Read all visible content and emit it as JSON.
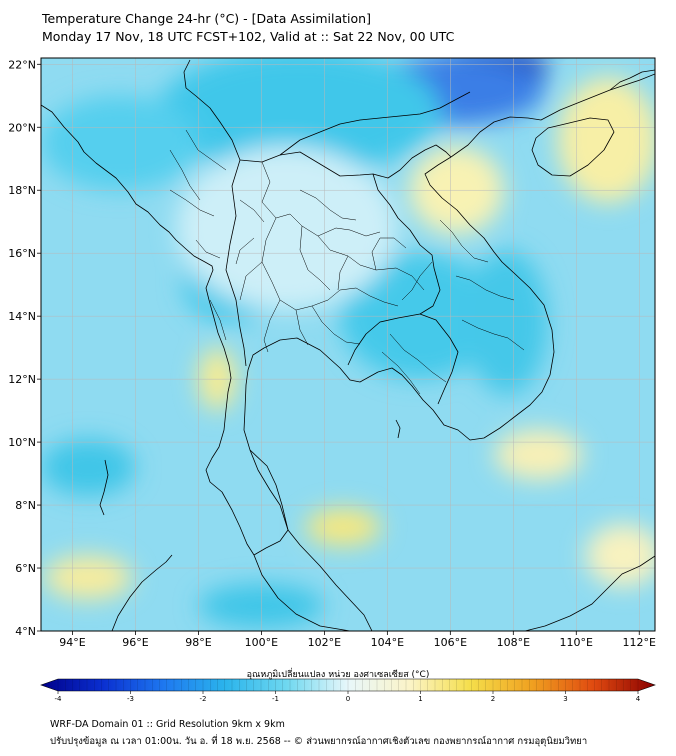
{
  "header": {
    "title_line1": "Temperature Change 24-hr (°C) - [Data Assimilation]",
    "title_line2": "Monday 17 Nov, 18 UTC FCST+102, Valid at :: Sat 22 Nov, 00 UTC"
  },
  "map": {
    "lon_range": [
      93,
      112.5
    ],
    "lat_range": [
      4,
      22.2
    ],
    "lat_ticks": [
      {
        "value": 22,
        "label": "22°N"
      },
      {
        "value": 20,
        "label": "20°N"
      },
      {
        "value": 18,
        "label": "18°N"
      },
      {
        "value": 16,
        "label": "16°N"
      },
      {
        "value": 14,
        "label": "14°N"
      },
      {
        "value": 12,
        "label": "12°N"
      },
      {
        "value": 10,
        "label": "10°N"
      },
      {
        "value": 8,
        "label": "8°N"
      },
      {
        "value": 6,
        "label": "6°N"
      },
      {
        "value": 4,
        "label": "4°N"
      }
    ],
    "lon_ticks": [
      {
        "value": 94,
        "label": "94°E"
      },
      {
        "value": 96,
        "label": "96°E"
      },
      {
        "value": 98,
        "label": "98°E"
      },
      {
        "value": 100,
        "label": "100°E"
      },
      {
        "value": 102,
        "label": "102°E"
      },
      {
        "value": 104,
        "label": "104°E"
      },
      {
        "value": 106,
        "label": "106°E"
      },
      {
        "value": 108,
        "label": "108°E"
      },
      {
        "value": 110,
        "label": "110°E"
      },
      {
        "value": 112,
        "label": "112°E"
      }
    ],
    "gridlines": true,
    "background_color": "#8fdbf1",
    "field_blobs": [
      {
        "lon": 107.2,
        "lat": 21.9,
        "rx": 1.9,
        "ry": 0.6,
        "color": "#0a1fb0"
      },
      {
        "lon": 106.2,
        "lat": 21.2,
        "rx": 2.8,
        "ry": 1.1,
        "color": "#3a7ee6"
      },
      {
        "lon": 101.2,
        "lat": 20.5,
        "rx": 4.5,
        "ry": 2.0,
        "color": "#3fc7ea"
      },
      {
        "lon": 95.5,
        "lat": 19.5,
        "rx": 2.5,
        "ry": 1.5,
        "color": "#55cfee"
      },
      {
        "lon": 105.0,
        "lat": 14.0,
        "rx": 2.5,
        "ry": 2.0,
        "color": "#45c9ea"
      },
      {
        "lon": 99.0,
        "lat": 15.0,
        "rx": 1.5,
        "ry": 1.2,
        "color": "#45c9ea"
      },
      {
        "lon": 100.8,
        "lat": 16.8,
        "rx": 3.5,
        "ry": 2.6,
        "color": "#cdeff8"
      },
      {
        "lon": 111.0,
        "lat": 19.6,
        "rx": 1.6,
        "ry": 2.0,
        "color": "#f7efa6"
      },
      {
        "lon": 106.2,
        "lat": 18.0,
        "rx": 1.5,
        "ry": 1.4,
        "color": "#f8f2b3"
      },
      {
        "lon": 98.6,
        "lat": 12.0,
        "rx": 0.6,
        "ry": 1.0,
        "color": "#f7ec93"
      },
      {
        "lon": 102.6,
        "lat": 7.3,
        "rx": 1.2,
        "ry": 0.6,
        "color": "#f6e880"
      },
      {
        "lon": 94.5,
        "lat": 5.7,
        "rx": 1.4,
        "ry": 0.7,
        "color": "#f7ec9e"
      },
      {
        "lon": 108.8,
        "lat": 9.6,
        "rx": 1.4,
        "ry": 0.8,
        "color": "#f8f0b6"
      },
      {
        "lon": 111.5,
        "lat": 6.4,
        "rx": 1.2,
        "ry": 1.0,
        "color": "#f8f2bf"
      },
      {
        "lon": 94.5,
        "lat": 9.2,
        "rx": 1.5,
        "ry": 0.9,
        "color": "#3fc6e8"
      },
      {
        "lon": 100.0,
        "lat": 4.8,
        "rx": 2.0,
        "ry": 0.7,
        "color": "#3fc6e8"
      },
      {
        "lon": 107.8,
        "lat": 13.8,
        "rx": 1.3,
        "ry": 2.3,
        "color": "#44c8e9"
      }
    ],
    "boundaries_color": "#000000"
  },
  "colorbar": {
    "label": "อุณหภูมิเปลี่ยนแปลง หน่วย องศาเซลเซียส (°C)",
    "min": -4,
    "max": 4,
    "ticks": [
      {
        "value": -4,
        "label": "-4"
      },
      {
        "value": -3,
        "label": "-3"
      },
      {
        "value": -2,
        "label": "-2"
      },
      {
        "value": -1,
        "label": "-1"
      },
      {
        "value": 0,
        "label": "0"
      },
      {
        "value": 1,
        "label": "1"
      },
      {
        "value": 2,
        "label": "2"
      },
      {
        "value": 3,
        "label": "3"
      },
      {
        "value": 4,
        "label": "4"
      }
    ],
    "color_stops": [
      "#00008a",
      "#0a2fd0",
      "#1e78f0",
      "#2bb4ec",
      "#6fd8f0",
      "#e8f7fa",
      "#fbf4c8",
      "#f5de4a",
      "#f0a020",
      "#e04a10",
      "#8a0000"
    ]
  },
  "footer": {
    "line1": "WRF-DA Domain 01 :: Grid Resolution 9km x 9km",
    "line2": "ปรับปรุงข้อมูล ณ เวลา 01:00น. วัน อ. ที่ 18 พ.ย. 2568 -- © ส่วนพยากรณ์อากาศเชิงตัวเลข กองพยากรณ์อากาศ กรมอุตุนิยมวิทยา"
  }
}
